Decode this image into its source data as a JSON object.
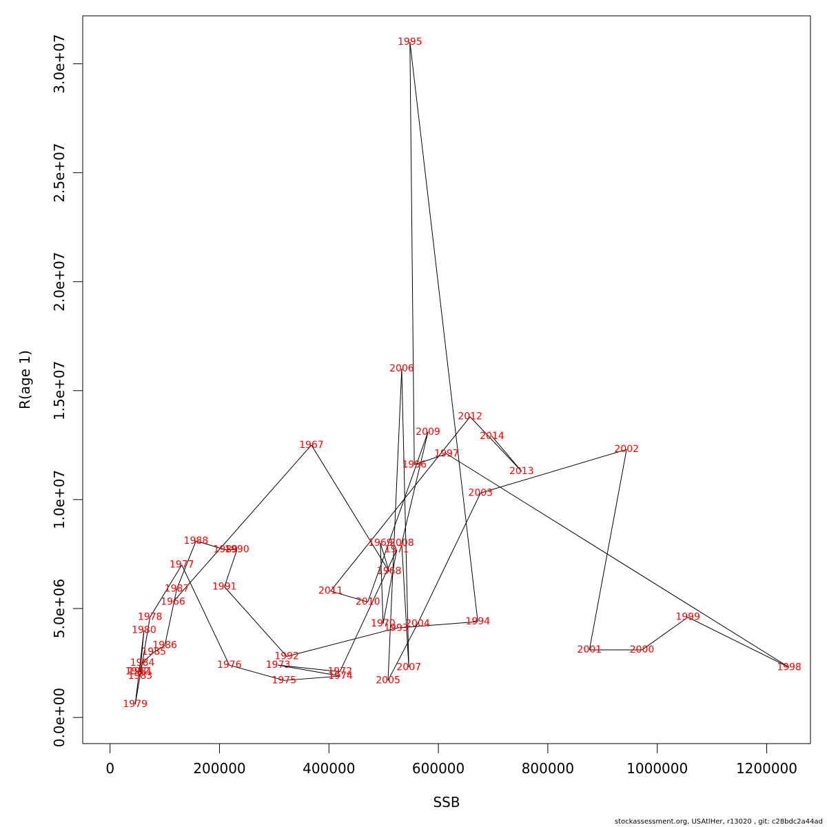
{
  "chart_data": {
    "type": "line",
    "xlabel": "SSB",
    "ylabel": "R(age 1)",
    "xlim": [
      -50000,
      1280000
    ],
    "ylim": [
      -1200000,
      32200000
    ],
    "x_ticks": [
      0,
      200000,
      400000,
      600000,
      800000,
      1000000,
      1200000
    ],
    "x_tick_labels": [
      "0",
      "200000",
      "400000",
      "600000",
      "800000",
      "1000000",
      "1200000"
    ],
    "y_ticks": [
      0,
      5000000,
      10000000,
      15000000,
      20000000,
      25000000,
      30000000
    ],
    "y_tick_labels": [
      "0.0e+00",
      "5.0e+06",
      "1.0e+07",
      "1.5e+07",
      "2.0e+07",
      "2.5e+07",
      "3.0e+07"
    ],
    "grid": false,
    "line_color": "#000000",
    "label_color": "#ff0000",
    "points": [
      {
        "label": "1966",
        "x": 115000,
        "y": 5300000
      },
      {
        "label": "1967",
        "x": 368000,
        "y": 12500000
      },
      {
        "label": "1968",
        "x": 510000,
        "y": 6700000
      },
      {
        "label": "1969",
        "x": 494000,
        "y": 8000000
      },
      {
        "label": "1970",
        "x": 499000,
        "y": 4300000
      },
      {
        "label": "1971",
        "x": 524000,
        "y": 7700000
      },
      {
        "label": "1972",
        "x": 420000,
        "y": 2100000
      },
      {
        "label": "1973",
        "x": 307000,
        "y": 2400000
      },
      {
        "label": "1974",
        "x": 421000,
        "y": 1900000
      },
      {
        "label": "1975",
        "x": 318000,
        "y": 1700000
      },
      {
        "label": "1976",
        "x": 218000,
        "y": 2400000
      },
      {
        "label": "1977",
        "x": 131000,
        "y": 7000000
      },
      {
        "label": "1978",
        "x": 73000,
        "y": 4600000
      },
      {
        "label": "1979",
        "x": 46000,
        "y": 600000
      },
      {
        "label": "1980",
        "x": 62000,
        "y": 4000000
      },
      {
        "label": "1981",
        "x": 55000,
        "y": 2100000
      },
      {
        "label": "1982",
        "x": 50000,
        "y": 2100000
      },
      {
        "label": "1983",
        "x": 55000,
        "y": 1900000
      },
      {
        "label": "1984",
        "x": 59000,
        "y": 2500000
      },
      {
        "label": "1985",
        "x": 80000,
        "y": 3000000
      },
      {
        "label": "1986",
        "x": 100000,
        "y": 3300000
      },
      {
        "label": "1987",
        "x": 122000,
        "y": 5900000
      },
      {
        "label": "1988",
        "x": 157000,
        "y": 8100000
      },
      {
        "label": "1989",
        "x": 211000,
        "y": 7700000
      },
      {
        "label": "1990",
        "x": 232000,
        "y": 7700000
      },
      {
        "label": "1991",
        "x": 209000,
        "y": 6000000
      },
      {
        "label": "1992",
        "x": 323000,
        "y": 2800000
      },
      {
        "label": "1993",
        "x": 523000,
        "y": 4100000
      },
      {
        "label": "1994",
        "x": 672000,
        "y": 4400000
      },
      {
        "label": "1995",
        "x": 548000,
        "y": 31000000
      },
      {
        "label": "1996",
        "x": 556000,
        "y": 11600000
      },
      {
        "label": "1997",
        "x": 615000,
        "y": 12100000
      },
      {
        "label": "1998",
        "x": 1241000,
        "y": 2300000
      },
      {
        "label": "1999",
        "x": 1056000,
        "y": 4600000
      },
      {
        "label": "2000",
        "x": 972000,
        "y": 3100000
      },
      {
        "label": "2001",
        "x": 876000,
        "y": 3100000
      },
      {
        "label": "2002",
        "x": 944000,
        "y": 12300000
      },
      {
        "label": "2003",
        "x": 677000,
        "y": 10300000
      },
      {
        "label": "2004",
        "x": 562000,
        "y": 4300000
      },
      {
        "label": "2005",
        "x": 508000,
        "y": 1700000
      },
      {
        "label": "2006",
        "x": 533000,
        "y": 16000000
      },
      {
        "label": "2007",
        "x": 546000,
        "y": 2300000
      },
      {
        "label": "2008",
        "x": 533000,
        "y": 8000000
      },
      {
        "label": "2009",
        "x": 581000,
        "y": 13100000
      },
      {
        "label": "2010",
        "x": 471000,
        "y": 5300000
      },
      {
        "label": "2011",
        "x": 403000,
        "y": 5800000
      },
      {
        "label": "2012",
        "x": 658000,
        "y": 13800000
      },
      {
        "label": "2013",
        "x": 752000,
        "y": 11300000
      },
      {
        "label": "2014",
        "x": 698000,
        "y": 12900000
      }
    ]
  },
  "footer_text": "stockassessment.org, USAtlHer, r13020 , git: c28bdc2a44ad"
}
